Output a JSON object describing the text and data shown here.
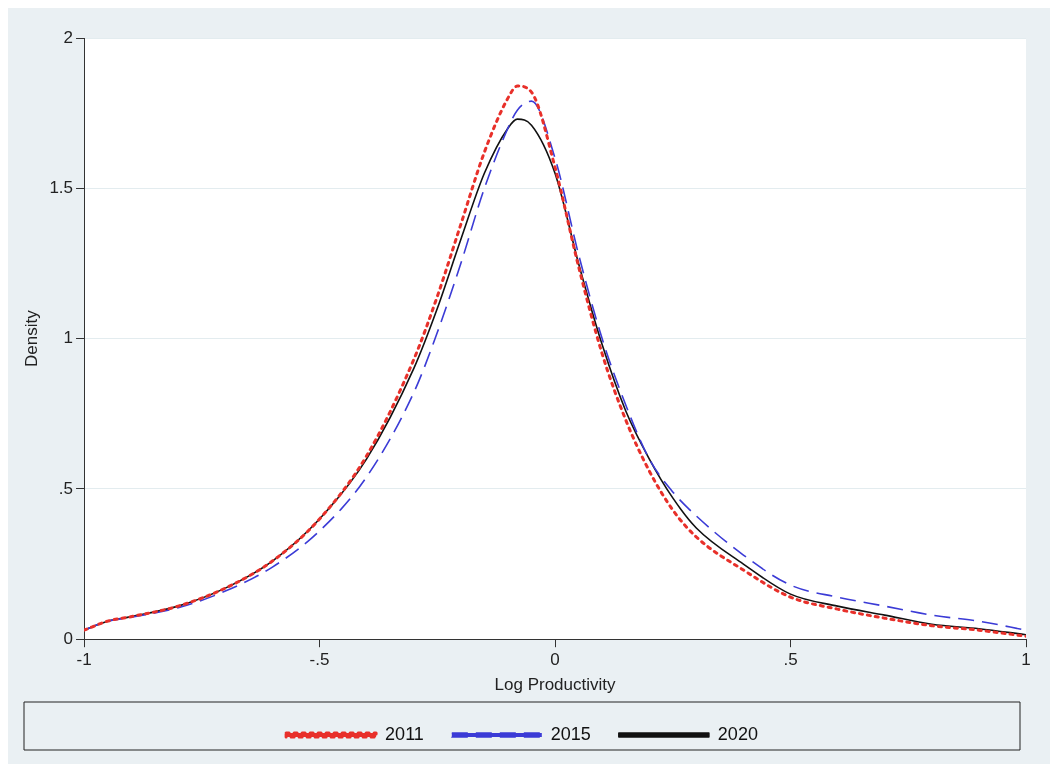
{
  "chart_data": {
    "type": "line",
    "xlabel": "Log Productivity",
    "ylabel": "Density",
    "xlim": [
      -1,
      1
    ],
    "ylim": [
      0,
      2
    ],
    "xticks": [
      -1,
      {
        "value": -0.5,
        "label": "-.5"
      },
      0,
      {
        "value": 0.5,
        "label": ".5"
      },
      1
    ],
    "yticks": [
      0,
      {
        "value": 0.5,
        "label": ".5"
      },
      1,
      {
        "value": 1.5,
        "label": "1.5"
      },
      2
    ],
    "grid": "y",
    "legend": "bottom",
    "marker": "none",
    "x": [
      -1,
      -0.95,
      -0.9,
      -0.8,
      -0.7,
      -0.6,
      -0.5,
      -0.4,
      -0.3,
      -0.25,
      -0.2,
      -0.15,
      -0.1,
      -0.08,
      -0.05,
      0,
      0.05,
      0.1,
      0.15,
      0.2,
      0.25,
      0.3,
      0.4,
      0.5,
      0.6,
      0.7,
      0.8,
      0.9,
      1
    ],
    "series": [
      {
        "name": "2011",
        "color": "#e8302a",
        "line_style": "dotted",
        "values": [
          0.03,
          0.06,
          0.075,
          0.11,
          0.17,
          0.26,
          0.4,
          0.61,
          0.93,
          1.14,
          1.38,
          1.62,
          1.8,
          1.84,
          1.82,
          1.57,
          1.24,
          0.95,
          0.73,
          0.56,
          0.43,
          0.34,
          0.23,
          0.14,
          0.1,
          0.07,
          0.045,
          0.03,
          0.01
        ]
      },
      {
        "name": "2015",
        "color": "#3b3bd6",
        "line_style": "dashed",
        "values": [
          0.03,
          0.06,
          0.073,
          0.105,
          0.16,
          0.24,
          0.36,
          0.54,
          0.82,
          1.02,
          1.25,
          1.5,
          1.7,
          1.76,
          1.79,
          1.6,
          1.28,
          1.0,
          0.78,
          0.6,
          0.49,
          0.41,
          0.28,
          0.18,
          0.14,
          0.11,
          0.08,
          0.06,
          0.03
        ]
      },
      {
        "name": "2020",
        "color": "#111111",
        "line_style": "solid",
        "values": [
          0.03,
          0.06,
          0.075,
          0.11,
          0.17,
          0.26,
          0.4,
          0.6,
          0.9,
          1.1,
          1.33,
          1.55,
          1.7,
          1.73,
          1.71,
          1.55,
          1.25,
          0.98,
          0.76,
          0.6,
          0.47,
          0.37,
          0.25,
          0.15,
          0.11,
          0.08,
          0.05,
          0.035,
          0.015
        ]
      }
    ]
  }
}
